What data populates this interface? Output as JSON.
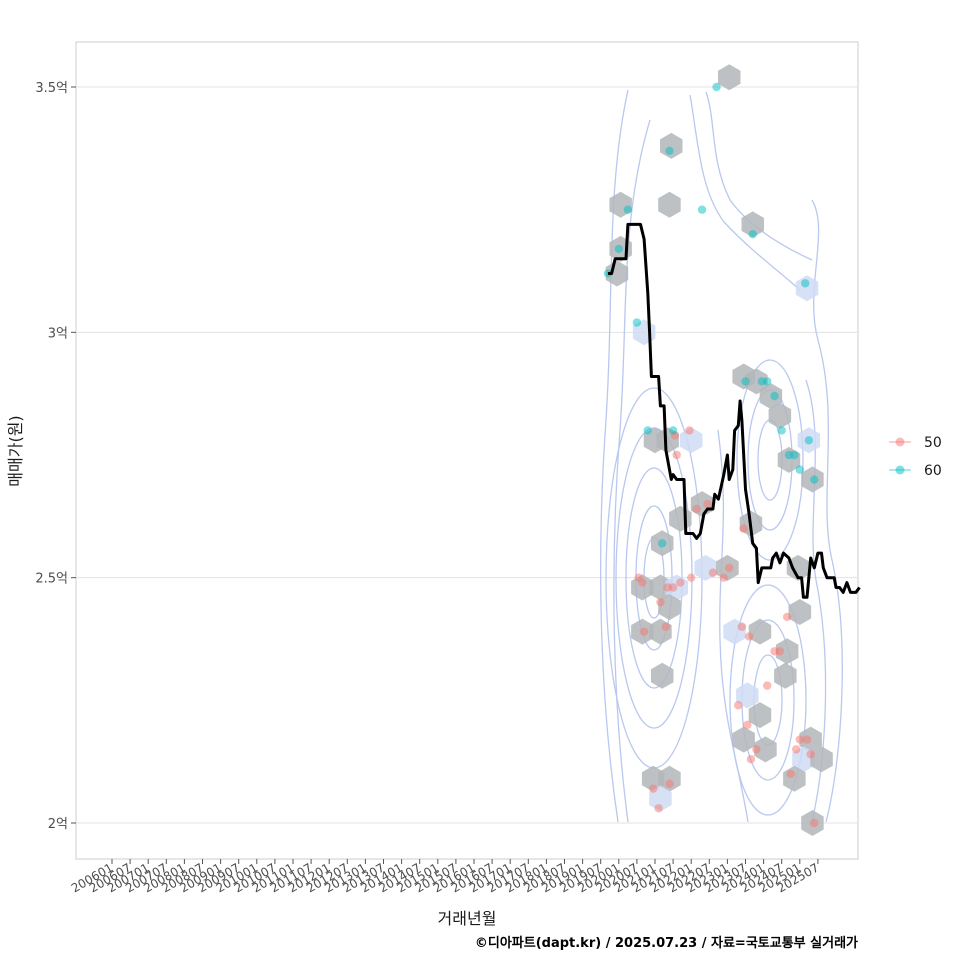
{
  "chart_data": {
    "type": "scatter",
    "title": "",
    "xlabel": "거래년월",
    "ylabel": "매매가(원)",
    "caption": "©디아파트(dapt.kr) / 2025.07.23 / 자료=국토교통부 실거래가",
    "x_ticks": [
      "200601",
      "200607",
      "200701",
      "200707",
      "200801",
      "200807",
      "200901",
      "200907",
      "201001",
      "201007",
      "201101",
      "201107",
      "201201",
      "201207",
      "201301",
      "201307",
      "201401",
      "201407",
      "201501",
      "201507",
      "201601",
      "201607",
      "201701",
      "201707",
      "201801",
      "201807",
      "201901",
      "201907",
      "202001",
      "202007",
      "202101",
      "202107",
      "202201",
      "202207",
      "202301",
      "202307",
      "202401",
      "202407",
      "202501",
      "202507"
    ],
    "y_ticks": [
      {
        "value": 2.0,
        "label": "2억"
      },
      {
        "value": 2.5,
        "label": "2.5억"
      },
      {
        "value": 3.0,
        "label": "3억"
      },
      {
        "value": 3.5,
        "label": "3.5억"
      }
    ],
    "ylim": [
      1.93,
      3.59
    ],
    "legend": {
      "placement": "right",
      "entries": [
        {
          "label": "50",
          "color": "#F8766D"
        },
        {
          "label": "60",
          "color": "#00BFC4"
        }
      ]
    },
    "series": [
      {
        "label": "50",
        "color": "#F8766D",
        "points": [
          [
            2020.55,
            2.5
          ],
          [
            2020.65,
            2.49
          ],
          [
            2020.7,
            2.39
          ],
          [
            2020.95,
            2.07
          ],
          [
            2021.1,
            2.03
          ],
          [
            2021.15,
            2.45
          ],
          [
            2021.3,
            2.4
          ],
          [
            2021.35,
            2.48
          ],
          [
            2021.4,
            2.08
          ],
          [
            2021.5,
            2.48
          ],
          [
            2021.55,
            2.79
          ],
          [
            2021.6,
            2.75
          ],
          [
            2021.7,
            2.49
          ],
          [
            2021.95,
            2.8
          ],
          [
            2022.0,
            2.5
          ],
          [
            2022.15,
            2.64
          ],
          [
            2022.45,
            2.65
          ],
          [
            2022.6,
            2.51
          ],
          [
            2022.9,
            2.5
          ],
          [
            2023.05,
            2.52
          ],
          [
            2023.3,
            2.24
          ],
          [
            2023.4,
            2.4
          ],
          [
            2023.45,
            2.6
          ],
          [
            2023.55,
            2.2
          ],
          [
            2023.6,
            2.38
          ],
          [
            2023.65,
            2.13
          ],
          [
            2023.8,
            2.15
          ],
          [
            2024.1,
            2.28
          ],
          [
            2024.3,
            2.35
          ],
          [
            2024.45,
            2.35
          ],
          [
            2024.65,
            2.42
          ],
          [
            2024.75,
            2.1
          ],
          [
            2024.9,
            2.15
          ],
          [
            2025.0,
            2.17
          ],
          [
            2025.2,
            2.17
          ],
          [
            2025.3,
            2.14
          ],
          [
            2025.4,
            2.0
          ]
        ]
      },
      {
        "label": "60",
        "color": "#00BFC4",
        "points": [
          [
            2019.7,
            3.12
          ],
          [
            2020.0,
            3.17
          ],
          [
            2020.25,
            3.25
          ],
          [
            2020.5,
            3.02
          ],
          [
            2020.8,
            2.8
          ],
          [
            2021.2,
            2.57
          ],
          [
            2021.4,
            3.37
          ],
          [
            2021.5,
            2.8
          ],
          [
            2022.3,
            3.25
          ],
          [
            2022.7,
            3.5
          ],
          [
            2023.5,
            2.9
          ],
          [
            2023.7,
            3.2
          ],
          [
            2023.95,
            2.9
          ],
          [
            2024.1,
            2.9
          ],
          [
            2024.3,
            2.87
          ],
          [
            2024.5,
            2.8
          ],
          [
            2024.7,
            2.75
          ],
          [
            2024.85,
            2.75
          ],
          [
            2025.0,
            2.72
          ],
          [
            2025.15,
            3.1
          ],
          [
            2025.25,
            2.78
          ],
          [
            2025.4,
            2.7
          ]
        ]
      }
    ],
    "hexbins": [
      [
        2020.05,
        3.26
      ],
      [
        2020.05,
        3.17
      ],
      [
        2019.95,
        3.12
      ],
      [
        2020.7,
        3.0
      ],
      [
        2021.45,
        3.38
      ],
      [
        2021.4,
        3.26
      ],
      [
        2023.05,
        3.52
      ],
      [
        2023.7,
        3.22
      ],
      [
        2025.2,
        3.09
      ],
      [
        2023.45,
        2.91
      ],
      [
        2023.8,
        2.9
      ],
      [
        2024.2,
        2.87
      ],
      [
        2024.45,
        2.83
      ],
      [
        2025.25,
        2.78
      ],
      [
        2024.7,
        2.74
      ],
      [
        2025.35,
        2.7
      ],
      [
        2021.0,
        2.78
      ],
      [
        2021.35,
        2.78
      ],
      [
        2022.0,
        2.78
      ],
      [
        2022.3,
        2.65
      ],
      [
        2021.7,
        2.62
      ],
      [
        2021.2,
        2.57
      ],
      [
        2023.65,
        2.61
      ],
      [
        2022.4,
        2.52
      ],
      [
        2023.0,
        2.52
      ],
      [
        2024.95,
        2.52
      ],
      [
        2020.65,
        2.48
      ],
      [
        2021.15,
        2.48
      ],
      [
        2021.6,
        2.48
      ],
      [
        2021.4,
        2.44
      ],
      [
        2025.0,
        2.43
      ],
      [
        2020.65,
        2.39
      ],
      [
        2021.15,
        2.39
      ],
      [
        2023.2,
        2.39
      ],
      [
        2023.9,
        2.39
      ],
      [
        2024.65,
        2.35
      ],
      [
        2021.2,
        2.3
      ],
      [
        2024.6,
        2.3
      ],
      [
        2023.55,
        2.26
      ],
      [
        2023.9,
        2.22
      ],
      [
        2023.45,
        2.17
      ],
      [
        2024.05,
        2.15
      ],
      [
        2025.3,
        2.17
      ],
      [
        2025.1,
        2.13
      ],
      [
        2025.6,
        2.13
      ],
      [
        2024.85,
        2.09
      ],
      [
        2020.95,
        2.09
      ],
      [
        2021.4,
        2.09
      ],
      [
        2021.15,
        2.05
      ],
      [
        2025.35,
        2.0
      ]
    ],
    "trend_line": [
      [
        2019.7,
        3.12
      ],
      [
        2019.8,
        3.12
      ],
      [
        2019.9,
        3.15
      ],
      [
        2020.2,
        3.15
      ],
      [
        2020.25,
        3.22
      ],
      [
        2020.6,
        3.22
      ],
      [
        2020.7,
        3.19
      ],
      [
        2020.8,
        3.08
      ],
      [
        2020.85,
        3.0
      ],
      [
        2020.9,
        2.91
      ],
      [
        2021.1,
        2.91
      ],
      [
        2021.15,
        2.85
      ],
      [
        2021.25,
        2.85
      ],
      [
        2021.3,
        2.76
      ],
      [
        2021.45,
        2.7
      ],
      [
        2021.5,
        2.71
      ],
      [
        2021.6,
        2.7
      ],
      [
        2021.8,
        2.7
      ],
      [
        2021.85,
        2.59
      ],
      [
        2022.05,
        2.59
      ],
      [
        2022.15,
        2.58
      ],
      [
        2022.25,
        2.59
      ],
      [
        2022.35,
        2.63
      ],
      [
        2022.45,
        2.64
      ],
      [
        2022.6,
        2.64
      ],
      [
        2022.65,
        2.67
      ],
      [
        2022.75,
        2.66
      ],
      [
        2022.9,
        2.71
      ],
      [
        2023.0,
        2.75
      ],
      [
        2023.05,
        2.7
      ],
      [
        2023.15,
        2.72
      ],
      [
        2023.2,
        2.8
      ],
      [
        2023.3,
        2.81
      ],
      [
        2023.35,
        2.86
      ],
      [
        2023.4,
        2.82
      ],
      [
        2023.5,
        2.68
      ],
      [
        2023.6,
        2.63
      ],
      [
        2023.7,
        2.57
      ],
      [
        2023.8,
        2.56
      ],
      [
        2023.85,
        2.49
      ],
      [
        2023.95,
        2.52
      ],
      [
        2024.2,
        2.52
      ],
      [
        2024.25,
        2.54
      ],
      [
        2024.35,
        2.55
      ],
      [
        2024.45,
        2.53
      ],
      [
        2024.55,
        2.55
      ],
      [
        2024.7,
        2.54
      ],
      [
        2024.8,
        2.52
      ],
      [
        2024.95,
        2.5
      ],
      [
        2025.05,
        2.5
      ],
      [
        2025.1,
        2.46
      ],
      [
        2025.2,
        2.46
      ],
      [
        2025.3,
        2.54
      ],
      [
        2025.4,
        2.52
      ],
      [
        2025.5,
        2.55
      ],
      [
        2025.6,
        2.55
      ],
      [
        2025.65,
        2.52
      ],
      [
        2025.75,
        2.5
      ],
      [
        2025.95,
        2.5
      ],
      [
        2026.0,
        2.48
      ],
      [
        2026.1,
        2.48
      ],
      [
        2026.2,
        2.47
      ],
      [
        2026.3,
        2.49
      ],
      [
        2026.4,
        2.47
      ],
      [
        2026.55,
        2.47
      ],
      [
        2026.65,
        2.48
      ]
    ]
  }
}
